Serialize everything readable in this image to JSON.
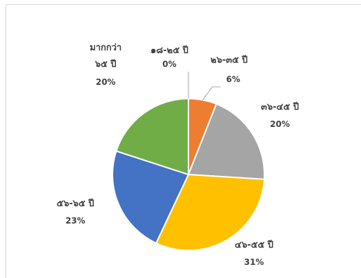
{
  "chart_data": {
    "type": "pie",
    "title": "",
    "categories": [
      "๑๘-๒๕ ปี",
      "๒๖-๓๕ ปี",
      "๓๖-๔๕ ปี",
      "๔๖-๕๕ ปี",
      "๕๖-๖๕ ปี",
      "มากกว่า ๖๕ ปี"
    ],
    "values": [
      0,
      6,
      20,
      31,
      23,
      20
    ],
    "labels": [
      "0%",
      "6%",
      "20%",
      "31%",
      "23%",
      "20%"
    ],
    "colors": [
      "#4472c4",
      "#ed7d31",
      "#a5a5a5",
      "#ffc000",
      "#4472c4",
      "#70ad47"
    ],
    "legend": "none"
  },
  "labels": {
    "l0": {
      "name": "๑๘-๒๕ ปี",
      "pct": "0%"
    },
    "l1": {
      "name": "๒๖-๓๕ ปี",
      "pct": "6%"
    },
    "l2": {
      "name": "๓๖-๔๕ ปี",
      "pct": "20%"
    },
    "l3": {
      "name": "๔๖-๕๕ ปี",
      "pct": "31%"
    },
    "l4": {
      "name": "๕๖-๖๕ ปี",
      "pct": "23%"
    },
    "l5": {
      "name_line1": "มากกว่า",
      "name_line2": "๖๕ ปี",
      "pct": "20%"
    }
  }
}
